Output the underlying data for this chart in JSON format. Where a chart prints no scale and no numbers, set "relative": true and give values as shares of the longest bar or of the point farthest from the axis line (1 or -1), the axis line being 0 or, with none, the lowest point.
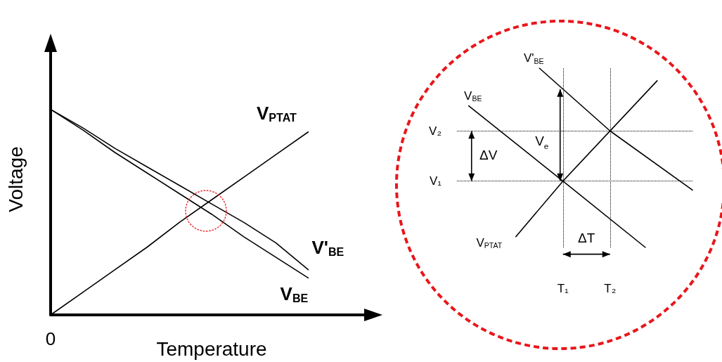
{
  "chart_data": [
    {
      "type": "line",
      "relative": true,
      "xlabel": "Temperature",
      "ylabel": "Voltage",
      "grid": false,
      "marker": "none",
      "line_style": "solid",
      "categories": [
        null,
        null,
        null,
        null,
        null,
        null,
        null,
        null,
        null,
        null,
        null
      ],
      "series": [
        {
          "name": "V$_{PTAT}$",
          "color": "#000000",
          "values": [
            0,
            0.11,
            0.22,
            0.33,
            0.45,
            0.56,
            0.67,
            0.78,
            0.89,
            null,
            null
          ]
        },
        {
          "name": "V'$_{BE}$",
          "color": "#000000",
          "values": [
            1,
            0.91,
            0.81,
            0.72,
            0.63,
            0.54,
            0.45,
            0.35,
            0.22,
            null,
            null
          ]
        },
        {
          "name": "V$_{BE}$",
          "color": "#000000",
          "values": [
            1,
            0.9,
            0.79,
            0.69,
            0.59,
            0.49,
            0.38,
            0.28,
            0.18,
            null,
            null
          ]
        }
      ],
      "annotations": [
        "0"
      ]
    },
    {
      "type": "line",
      "relative": true,
      "grid": "x",
      "marker": "none",
      "line_style": "solid",
      "categories": [
        null,
        null,
        null,
        null,
        null,
        null,
        null,
        null,
        null,
        "T₁",
        null,
        null,
        null,
        "T₂",
        null,
        null,
        null,
        null,
        null,
        null,
        null
      ],
      "series": [
        {
          "name": "V'$_{BE}$",
          "color": "#000000",
          "values": [
            null,
            null,
            null,
            null,
            null,
            null,
            null,
            1,
            null,
            null,
            null,
            null,
            null,
            0.65,
            null,
            null,
            null,
            null,
            null,
            null,
            0.32
          ]
        },
        {
          "name": "V$_{BE}$",
          "color": "#000000",
          "values": [
            null,
            0.79,
            null,
            null,
            null,
            null,
            null,
            null,
            null,
            0.37,
            null,
            null,
            null,
            null,
            null,
            null,
            0,
            null,
            null,
            null,
            null
          ]
        },
        {
          "name": "V$_{PTAT}$",
          "color": "#000000",
          "values": [
            null,
            null,
            null,
            null,
            null,
            0.06,
            null,
            null,
            null,
            0.37,
            null,
            null,
            null,
            null,
            null,
            null,
            null,
            0.93,
            null,
            null,
            null
          ]
        }
      ],
      "ref_lines": [
        {
          "axis": "y",
          "value": 0.37,
          "label": "V₁",
          "line_style": "dotted"
        },
        {
          "axis": "y",
          "value": 0.65,
          "label": "V₂",
          "line_style": "dotted"
        }
      ],
      "annotations": [
        "ΔV",
        "V$_{e}$",
        "ΔT"
      ]
    }
  ]
}
